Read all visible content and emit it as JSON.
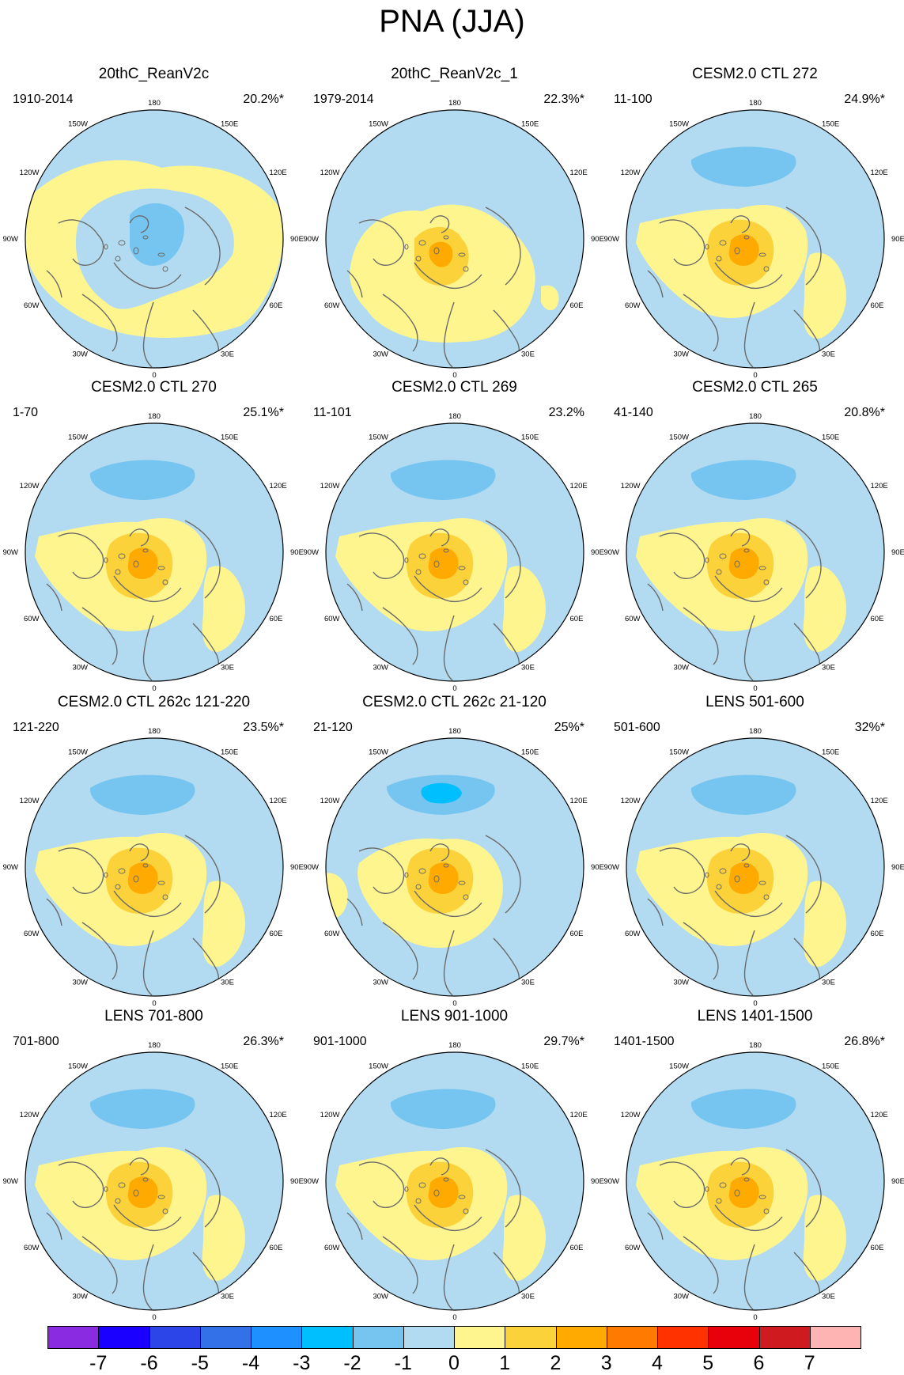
{
  "title": "PNA (JJA)",
  "chart_data": {
    "type": "polar-stereographic map grid",
    "title": "PNA (JJA)",
    "panels": [
      {
        "title": "20thC_ReanV2c",
        "period": "1910-2014",
        "variance": "20.2%*",
        "variant": 0
      },
      {
        "title": "20thC_ReanV2c_1",
        "period": "1979-2014",
        "variance": "22.3%*",
        "variant": 1
      },
      {
        "title": "CESM2.0 CTL 272",
        "period": "11-100",
        "variance": "24.9%*",
        "variant": 2
      },
      {
        "title": "CESM2.0 CTL 270",
        "period": "1-70",
        "variance": "25.1%*",
        "variant": 2
      },
      {
        "title": "CESM2.0 CTL 269",
        "period": "11-101",
        "variance": "23.2%",
        "variant": 2
      },
      {
        "title": "CESM2.0 CTL 265",
        "period": "41-140",
        "variance": "20.8%*",
        "variant": 2
      },
      {
        "title": "CESM2.0 CTL 262c 121-220",
        "period": "121-220",
        "variance": "23.5%*",
        "variant": 2
      },
      {
        "title": "CESM2.0 CTL 262c 21-120",
        "period": "21-120",
        "variance": "25%*",
        "variant": 3
      },
      {
        "title": "LENS 501-600",
        "period": "501-600",
        "variance": "32%*",
        "variant": 2
      },
      {
        "title": "LENS 701-800",
        "period": "701-800",
        "variance": "26.3%*",
        "variant": 2
      },
      {
        "title": "LENS 901-1000",
        "period": "901-1000",
        "variance": "29.7%*",
        "variant": 2
      },
      {
        "title": "LENS 1401-1500",
        "period": "1401-1500",
        "variance": "26.8%*",
        "variant": 2
      }
    ],
    "longitude_labels": [
      "180",
      "150E",
      "120E",
      "90E",
      "60E",
      "30E",
      "0",
      "30W",
      "60W",
      "90W",
      "120W",
      "150W"
    ],
    "colorbar": {
      "labels": [
        "-7",
        "-6",
        "-5",
        "-4",
        "-3",
        "-2",
        "-1",
        "0",
        "1",
        "2",
        "3",
        "4",
        "5",
        "6",
        "7"
      ],
      "colors": [
        "#8a2be2",
        "#1a00ff",
        "#2b45e8",
        "#3371e8",
        "#1e90ff",
        "#00bfff",
        "#75c5f0",
        "#b2dbf1",
        "#fff58f",
        "#fcd23a",
        "#ffaa00",
        "#ff7a00",
        "#ff3200",
        "#e8000b",
        "#cf1b20",
        "#ffb4b4"
      ]
    },
    "palette": {
      "neg1": "#b2dbf1",
      "pos0": "#fff58f",
      "pos1": "#fcd23a",
      "pos2": "#ffaa00",
      "neg2": "#75c5f0",
      "neg3": "#00bfff",
      "coast": "#6a6a6a"
    }
  }
}
